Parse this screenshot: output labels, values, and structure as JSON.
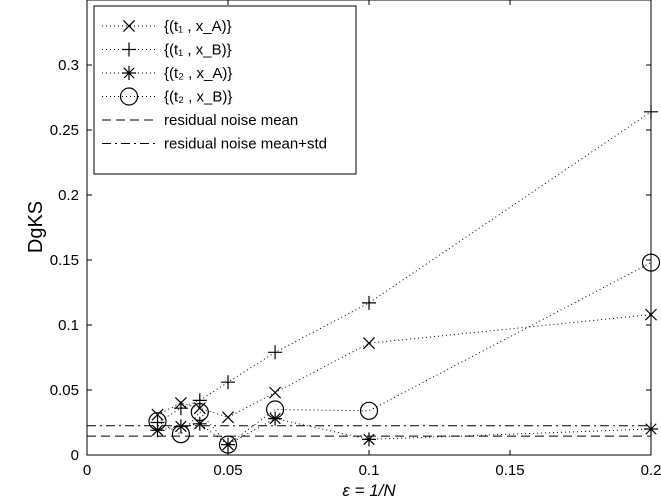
{
  "chart_data": {
    "type": "line",
    "xlabel": "ε = 1/N",
    "ylabel": "DgKS",
    "xlim": [
      0,
      0.2
    ],
    "ylim": [
      0,
      0.35
    ],
    "xticks": [
      0,
      0.05,
      0.1,
      0.15,
      0.2
    ],
    "xtick_labels": [
      "0",
      "0.05",
      "0.1",
      "0.15",
      "0.2"
    ],
    "yticks": [
      0,
      0.05,
      0.1,
      0.15,
      0.2,
      0.25,
      0.3
    ],
    "ytick_labels": [
      "0",
      "0.05",
      "0.1",
      "0.15",
      "0.2",
      "0.25",
      "0.3"
    ],
    "grid": false,
    "legend_position": "top-left",
    "x": [
      0.025,
      0.0333,
      0.04,
      0.05,
      0.0667,
      0.1,
      0.2
    ],
    "series": [
      {
        "name": "{(t₁ , x_A)}",
        "marker": "x",
        "values": [
          0.031,
          0.04,
          0.036,
          0.029,
          0.048,
          0.086,
          0.108
        ]
      },
      {
        "name": "{(t₁ , x_B)}",
        "marker": "plus",
        "values": [
          0.025,
          0.036,
          0.042,
          0.056,
          0.079,
          0.117,
          0.264
        ]
      },
      {
        "name": "{(t₂ , x_A)}",
        "marker": "star",
        "values": [
          0.019,
          0.022,
          0.024,
          0.008,
          0.028,
          0.012,
          0.02
        ]
      },
      {
        "name": "{(t₂ , x_B)}",
        "marker": "circle",
        "values": [
          0.026,
          0.016,
          0.033,
          0.008,
          0.035,
          0.034,
          0.148
        ]
      }
    ],
    "reference_lines": [
      {
        "name": "residual noise mean",
        "style": "dashed",
        "y": 0.0145
      },
      {
        "name": "residual noise mean+std",
        "style": "dashdot",
        "y": 0.0225
      }
    ]
  }
}
